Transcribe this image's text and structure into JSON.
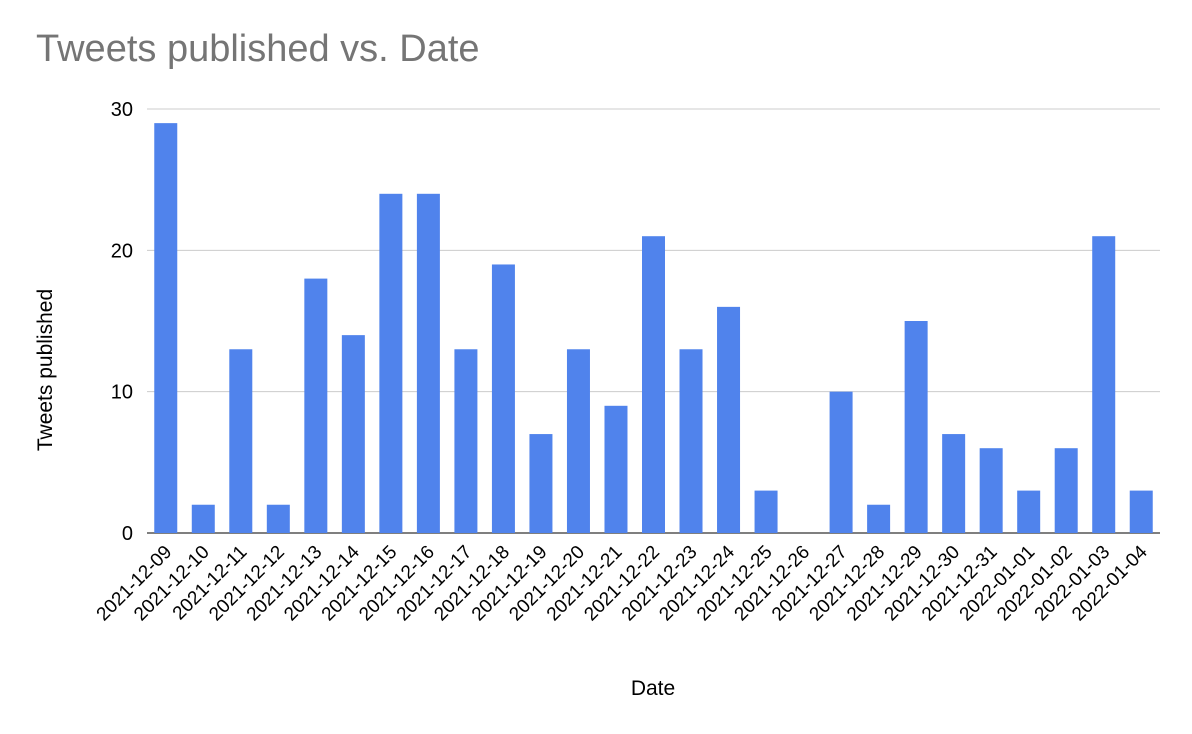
{
  "chart_data": {
    "type": "bar",
    "title": "Tweets published vs. Date",
    "xlabel": "Date",
    "ylabel": "Tweets published",
    "ylim": [
      0,
      30
    ],
    "yticks": [
      0,
      10,
      20,
      30
    ],
    "grid": true,
    "bar_color": "#5083ec",
    "categories": [
      "2021-12-09",
      "2021-12-10",
      "2021-12-11",
      "2021-12-12",
      "2021-12-13",
      "2021-12-14",
      "2021-12-15",
      "2021-12-16",
      "2021-12-17",
      "2021-12-18",
      "2021-12-19",
      "2021-12-20",
      "2021-12-21",
      "2021-12-22",
      "2021-12-23",
      "2021-12-24",
      "2021-12-25",
      "2021-12-26",
      "2021-12-27",
      "2021-12-28",
      "2021-12-29",
      "2021-12-30",
      "2021-12-31",
      "2022-01-01",
      "2022-01-02",
      "2022-01-03",
      "2022-01-04"
    ],
    "values": [
      29,
      2,
      13,
      2,
      18,
      14,
      24,
      24,
      13,
      19,
      7,
      13,
      9,
      21,
      13,
      16,
      3,
      0,
      10,
      2,
      15,
      7,
      6,
      3,
      6,
      21,
      3
    ]
  }
}
